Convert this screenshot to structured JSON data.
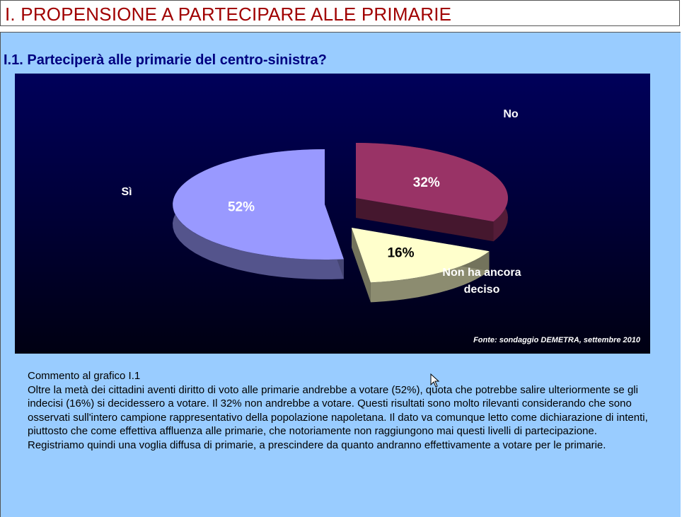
{
  "header": {
    "title": "I. PROPENSIONE A PARTECIPARE ALLE PRIMARIE"
  },
  "section": {
    "subtitle": "I.1. Parteciperà alle primarie del centro-sinistra?"
  },
  "chart_data": {
    "type": "pie",
    "style": "3d-exploded",
    "slices": [
      {
        "label": "Sì",
        "value": 52,
        "value_label": "52%",
        "color": "#9999ff"
      },
      {
        "label": "No",
        "value": 32,
        "value_label": "32%",
        "color": "#993366"
      },
      {
        "label": "Non ha ancora deciso",
        "value": 16,
        "value_label": "16%",
        "color": "#ffffcc"
      }
    ],
    "source": "Fonte: sondaggio DEMETRA, settembre 2010",
    "background": "#000050"
  },
  "comment": {
    "heading": "Commento al grafico I.1",
    "body": "Oltre la metà dei cittadini aventi diritto di voto alle primarie andrebbe a votare (52%), quota che potrebbe salire ulteriormente se gli indecisi (16%) si decidessero a votare. Il 32% non andrebbe a votare. Questi risultati sono molto rilevanti considerando che sono osservati sull'intero campione rappresentativo della popolazione napoletana. Il dato va comunque letto come dichiarazione di intenti, piuttosto che come effettiva affluenza alle primarie, che notoriamente non raggiungono mai questi livelli di partecipazione. Registriamo quindi una voglia diffusa di primarie, a prescindere da quanto andranno effettivamente a votare per le primarie."
  },
  "colors": {
    "header_text": "#a00000",
    "subtitle_text": "#000080",
    "panel_bg": "#99ccff"
  }
}
